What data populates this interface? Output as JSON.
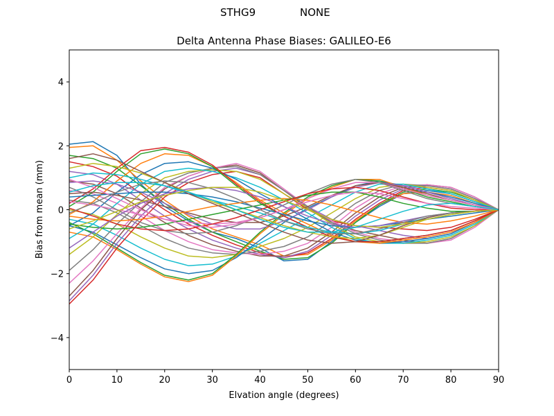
{
  "header": {
    "station": "STHG9",
    "radome": "NONE"
  },
  "colors": {
    "series_cycle": [
      "#1f77b4",
      "#ff7f0e",
      "#2ca02c",
      "#d62728",
      "#9467bd",
      "#8c564b",
      "#e377c2",
      "#7f7f7f",
      "#bcbd22",
      "#17becf"
    ]
  },
  "chart_data": {
    "type": "line",
    "title": "Delta Antenna Phase Biases: GALILEO-E6",
    "xlabel": "Elvation angle (degrees)",
    "ylabel": "Bias from mean (mm)",
    "xlim": [
      0,
      90
    ],
    "ylim": [
      -5,
      5
    ],
    "xticks": [
      0,
      10,
      20,
      30,
      40,
      50,
      60,
      70,
      80,
      90
    ],
    "yticks": [
      -4,
      -2,
      0,
      2,
      4
    ],
    "ytick_labels": [
      "−4",
      "−2",
      "0",
      "2",
      "4"
    ],
    "grid": false,
    "x": [
      0,
      5,
      10,
      15,
      20,
      25,
      30,
      35,
      40,
      45,
      50,
      55,
      60,
      65,
      70,
      75,
      80,
      85,
      90
    ],
    "series": [
      {
        "values": [
          2.05,
          2.13,
          1.7,
          0.8,
          0.1,
          -0.35,
          -0.7,
          -0.9,
          -1.2,
          -1.6,
          -1.55,
          -1.0,
          -0.4,
          0.1,
          0.5,
          0.6,
          0.5,
          0.25,
          0
        ]
      },
      {
        "values": [
          1.95,
          2.0,
          1.55,
          0.9,
          0.3,
          -0.2,
          -0.6,
          -0.85,
          -1.1,
          -1.45,
          -1.4,
          -0.95,
          -0.35,
          0.15,
          0.5,
          0.55,
          0.45,
          0.2,
          0
        ]
      },
      {
        "values": [
          1.7,
          1.6,
          1.3,
          0.75,
          0.2,
          -0.3,
          -0.7,
          -1.0,
          -1.3,
          -1.55,
          -1.5,
          -1.05,
          -0.4,
          0.15,
          0.55,
          0.65,
          0.55,
          0.3,
          0
        ]
      },
      {
        "values": [
          1.5,
          1.35,
          1.05,
          0.5,
          0.0,
          -0.45,
          -0.8,
          -1.1,
          -1.35,
          -1.5,
          -1.35,
          -0.9,
          -0.3,
          0.2,
          0.6,
          0.7,
          0.6,
          0.3,
          0
        ]
      },
      {
        "values": [
          1.2,
          1.1,
          0.8,
          0.3,
          -0.2,
          -0.6,
          -0.95,
          -1.2,
          -1.4,
          -1.5,
          -1.3,
          -0.8,
          -0.2,
          0.3,
          0.65,
          0.75,
          0.65,
          0.35,
          0
        ]
      },
      {
        "values": [
          0.9,
          0.8,
          0.5,
          0.05,
          -0.4,
          -0.8,
          -1.1,
          -1.3,
          -1.45,
          -1.45,
          -1.2,
          -0.7,
          -0.1,
          0.4,
          0.7,
          0.78,
          0.7,
          0.4,
          0
        ]
      },
      {
        "values": [
          0.6,
          0.5,
          0.2,
          -0.2,
          -0.65,
          -1.0,
          -1.25,
          -1.35,
          -1.4,
          -1.3,
          -1.05,
          -0.55,
          0.05,
          0.5,
          0.75,
          0.78,
          0.7,
          0.4,
          0
        ]
      },
      {
        "values": [
          0.3,
          0.2,
          -0.1,
          -0.5,
          -0.9,
          -1.2,
          -1.35,
          -1.4,
          -1.3,
          -1.15,
          -0.85,
          -0.35,
          0.2,
          0.6,
          0.8,
          0.75,
          0.65,
          0.35,
          0
        ]
      },
      {
        "values": [
          0.0,
          -0.15,
          -0.45,
          -0.85,
          -1.2,
          -1.45,
          -1.5,
          -1.4,
          -1.15,
          -0.9,
          -0.55,
          -0.1,
          0.35,
          0.7,
          0.8,
          0.7,
          0.6,
          0.3,
          0
        ]
      },
      {
        "values": [
          -0.3,
          -0.45,
          -0.8,
          -1.2,
          -1.55,
          -1.75,
          -1.7,
          -1.45,
          -1.05,
          -0.65,
          -0.25,
          0.15,
          0.55,
          0.8,
          0.8,
          0.65,
          0.5,
          0.25,
          0
        ]
      },
      {
        "values": [
          -0.5,
          -0.7,
          -1.1,
          -1.5,
          -1.85,
          -2.0,
          -1.9,
          -1.5,
          -0.95,
          -0.4,
          0.05,
          0.4,
          0.75,
          0.9,
          0.75,
          0.55,
          0.4,
          0.2,
          0
        ]
      },
      {
        "values": [
          -0.7,
          -0.85,
          -1.25,
          -1.7,
          -2.1,
          -2.25,
          -2.05,
          -1.45,
          -0.75,
          -0.15,
          0.35,
          0.7,
          0.95,
          0.95,
          0.7,
          0.45,
          0.3,
          0.15,
          0
        ]
      },
      {
        "values": [
          -0.4,
          -0.75,
          -1.2,
          -1.65,
          -2.05,
          -2.2,
          -2.0,
          -1.4,
          -0.7,
          -0.1,
          0.4,
          0.75,
          0.95,
          0.9,
          0.65,
          0.4,
          0.25,
          0.1,
          0
        ]
      },
      {
        "values": [
          -2.95,
          -2.2,
          -1.2,
          -0.35,
          0.4,
          0.85,
          1.1,
          1.2,
          1.0,
          0.5,
          0.0,
          -0.35,
          -0.5,
          -0.55,
          -0.6,
          -0.65,
          -0.55,
          -0.3,
          0
        ]
      },
      {
        "values": [
          -2.85,
          -2.05,
          -1.05,
          -0.2,
          0.5,
          0.95,
          1.2,
          1.3,
          1.1,
          0.6,
          0.1,
          -0.3,
          -0.5,
          -0.65,
          -0.8,
          -0.9,
          -0.75,
          -0.4,
          0
        ]
      },
      {
        "values": [
          -2.7,
          -1.9,
          -0.9,
          0.0,
          0.65,
          1.05,
          1.3,
          1.4,
          1.15,
          0.6,
          0.05,
          -0.4,
          -0.65,
          -0.8,
          -0.95,
          -1.05,
          -0.9,
          -0.5,
          0
        ]
      },
      {
        "values": [
          -2.3,
          -1.6,
          -0.75,
          0.05,
          0.7,
          1.05,
          1.3,
          1.45,
          1.2,
          0.65,
          0.1,
          -0.35,
          -0.7,
          -0.9,
          -1.0,
          -1.05,
          -0.95,
          -0.55,
          0
        ]
      },
      {
        "values": [
          -1.9,
          -1.25,
          -0.45,
          0.25,
          0.85,
          1.15,
          1.3,
          1.35,
          1.1,
          0.6,
          0.1,
          -0.4,
          -0.75,
          -0.95,
          -1.05,
          -1.05,
          -0.9,
          -0.5,
          0
        ]
      },
      {
        "values": [
          -1.4,
          -0.85,
          -0.15,
          0.5,
          1.0,
          1.2,
          1.25,
          1.2,
          0.95,
          0.5,
          0.05,
          -0.45,
          -0.85,
          -1.0,
          -1.05,
          -1.0,
          -0.85,
          -0.5,
          0
        ]
      },
      {
        "values": [
          -0.9,
          -0.45,
          0.2,
          0.8,
          1.2,
          1.3,
          1.2,
          1.0,
          0.7,
          0.3,
          -0.1,
          -0.55,
          -0.9,
          -1.05,
          -1.05,
          -0.95,
          -0.8,
          -0.45,
          0
        ]
      },
      {
        "values": [
          -0.5,
          -0.1,
          0.55,
          1.1,
          1.45,
          1.5,
          1.3,
          0.95,
          0.5,
          0.1,
          -0.3,
          -0.7,
          -0.95,
          -1.05,
          -1.0,
          -0.9,
          -0.75,
          -0.4,
          0
        ]
      },
      {
        "values": [
          -0.15,
          0.25,
          0.9,
          1.45,
          1.75,
          1.7,
          1.35,
          0.85,
          0.3,
          -0.1,
          -0.45,
          -0.8,
          -1.0,
          -1.05,
          -0.95,
          -0.85,
          -0.7,
          -0.4,
          0
        ]
      },
      {
        "values": [
          0.1,
          0.55,
          1.2,
          1.75,
          1.9,
          1.75,
          1.35,
          0.75,
          0.2,
          -0.2,
          -0.55,
          -0.85,
          -1.0,
          -1.0,
          -0.9,
          -0.8,
          -0.65,
          -0.35,
          0
        ]
      },
      {
        "values": [
          0.2,
          0.65,
          1.3,
          1.85,
          1.95,
          1.8,
          1.4,
          0.8,
          0.25,
          -0.2,
          -0.55,
          -0.85,
          -1.0,
          -1.0,
          -0.9,
          -0.8,
          -0.65,
          -0.35,
          0
        ]
      },
      {
        "values": [
          0.85,
          0.9,
          0.8,
          0.55,
          0.2,
          -0.15,
          -0.45,
          -0.6,
          -0.6,
          -0.35,
          0.0,
          0.4,
          0.7,
          0.85,
          0.75,
          0.55,
          0.35,
          0.15,
          0
        ]
      },
      {
        "values": [
          0.5,
          0.55,
          0.45,
          0.3,
          0.1,
          -0.1,
          -0.3,
          -0.4,
          -0.4,
          -0.2,
          0.1,
          0.45,
          0.75,
          0.85,
          0.7,
          0.5,
          0.3,
          0.15,
          0
        ]
      },
      {
        "values": [
          0.25,
          0.15,
          0.0,
          -0.15,
          -0.3,
          -0.4,
          -0.45,
          -0.4,
          -0.25,
          0.0,
          0.35,
          0.65,
          0.85,
          0.85,
          0.65,
          0.45,
          0.3,
          0.15,
          0
        ]
      },
      {
        "values": [
          0.7,
          0.4,
          0.0,
          -0.4,
          -0.65,
          -0.75,
          -0.7,
          -0.5,
          -0.2,
          0.15,
          0.5,
          0.8,
          0.95,
          0.85,
          0.6,
          0.35,
          0.2,
          0.1,
          0
        ]
      },
      {
        "values": [
          1.3,
          1.45,
          1.35,
          1.15,
          0.85,
          0.55,
          0.25,
          0.0,
          -0.25,
          -0.5,
          -0.7,
          -0.85,
          -0.9,
          -0.8,
          -0.55,
          -0.3,
          -0.15,
          -0.05,
          0
        ]
      },
      {
        "values": [
          1.0,
          1.15,
          1.1,
          0.95,
          0.75,
          0.5,
          0.3,
          0.1,
          -0.1,
          -0.35,
          -0.55,
          -0.7,
          -0.75,
          -0.65,
          -0.45,
          -0.25,
          -0.1,
          -0.05,
          0
        ]
      },
      {
        "values": [
          0.4,
          0.45,
          0.5,
          0.55,
          0.55,
          0.5,
          0.4,
          0.25,
          0.05,
          -0.15,
          -0.35,
          -0.5,
          -0.55,
          -0.5,
          -0.4,
          -0.3,
          -0.2,
          -0.1,
          0
        ]
      },
      {
        "values": [
          -0.2,
          -0.3,
          -0.35,
          -0.3,
          -0.2,
          -0.05,
          0.1,
          0.2,
          0.3,
          0.35,
          0.3,
          0.15,
          -0.05,
          -0.25,
          -0.4,
          -0.45,
          -0.35,
          -0.2,
          0
        ]
      },
      {
        "values": [
          -0.45,
          -0.55,
          -0.6,
          -0.55,
          -0.45,
          -0.3,
          -0.15,
          0.0,
          0.15,
          0.3,
          0.45,
          0.55,
          0.55,
          0.4,
          0.2,
          0.05,
          -0.05,
          -0.05,
          0
        ]
      },
      {
        "values": [
          0.05,
          -0.2,
          -0.45,
          -0.6,
          -0.65,
          -0.6,
          -0.45,
          -0.25,
          0.0,
          0.25,
          0.5,
          0.65,
          0.7,
          0.6,
          0.4,
          0.2,
          0.05,
          0.0,
          0
        ]
      },
      {
        "values": [
          -1.2,
          -0.7,
          -0.2,
          0.2,
          0.5,
          0.65,
          0.7,
          0.6,
          0.4,
          0.1,
          -0.2,
          -0.45,
          -0.55,
          -0.5,
          -0.35,
          -0.2,
          -0.1,
          -0.05,
          0
        ]
      },
      {
        "values": [
          1.6,
          1.75,
          1.55,
          1.2,
          0.85,
          0.5,
          0.2,
          -0.1,
          -0.4,
          -0.7,
          -0.95,
          -1.05,
          -1.0,
          -0.8,
          -0.5,
          -0.25,
          -0.1,
          -0.05,
          0
        ]
      },
      {
        "values": [
          0.95,
          0.7,
          0.35,
          0.0,
          -0.3,
          -0.5,
          -0.55,
          -0.45,
          -0.25,
          0.0,
          0.25,
          0.45,
          0.55,
          0.5,
          0.35,
          0.2,
          0.1,
          0.05,
          0
        ]
      },
      {
        "values": [
          -0.1,
          0.2,
          0.55,
          0.8,
          0.9,
          0.85,
          0.65,
          0.35,
          0.0,
          -0.35,
          -0.6,
          -0.75,
          -0.75,
          -0.6,
          -0.4,
          -0.2,
          -0.1,
          -0.05,
          0
        ]
      },
      {
        "values": [
          -0.6,
          -0.35,
          -0.05,
          0.25,
          0.45,
          0.6,
          0.7,
          0.7,
          0.55,
          0.3,
          0.0,
          -0.3,
          -0.5,
          -0.55,
          -0.45,
          -0.3,
          -0.15,
          -0.05,
          0
        ]
      },
      {
        "values": [
          0.55,
          0.75,
          0.85,
          0.85,
          0.75,
          0.55,
          0.3,
          0.0,
          -0.3,
          -0.55,
          -0.7,
          -0.7,
          -0.55,
          -0.3,
          -0.05,
          0.15,
          0.2,
          0.1,
          0
        ]
      }
    ]
  }
}
